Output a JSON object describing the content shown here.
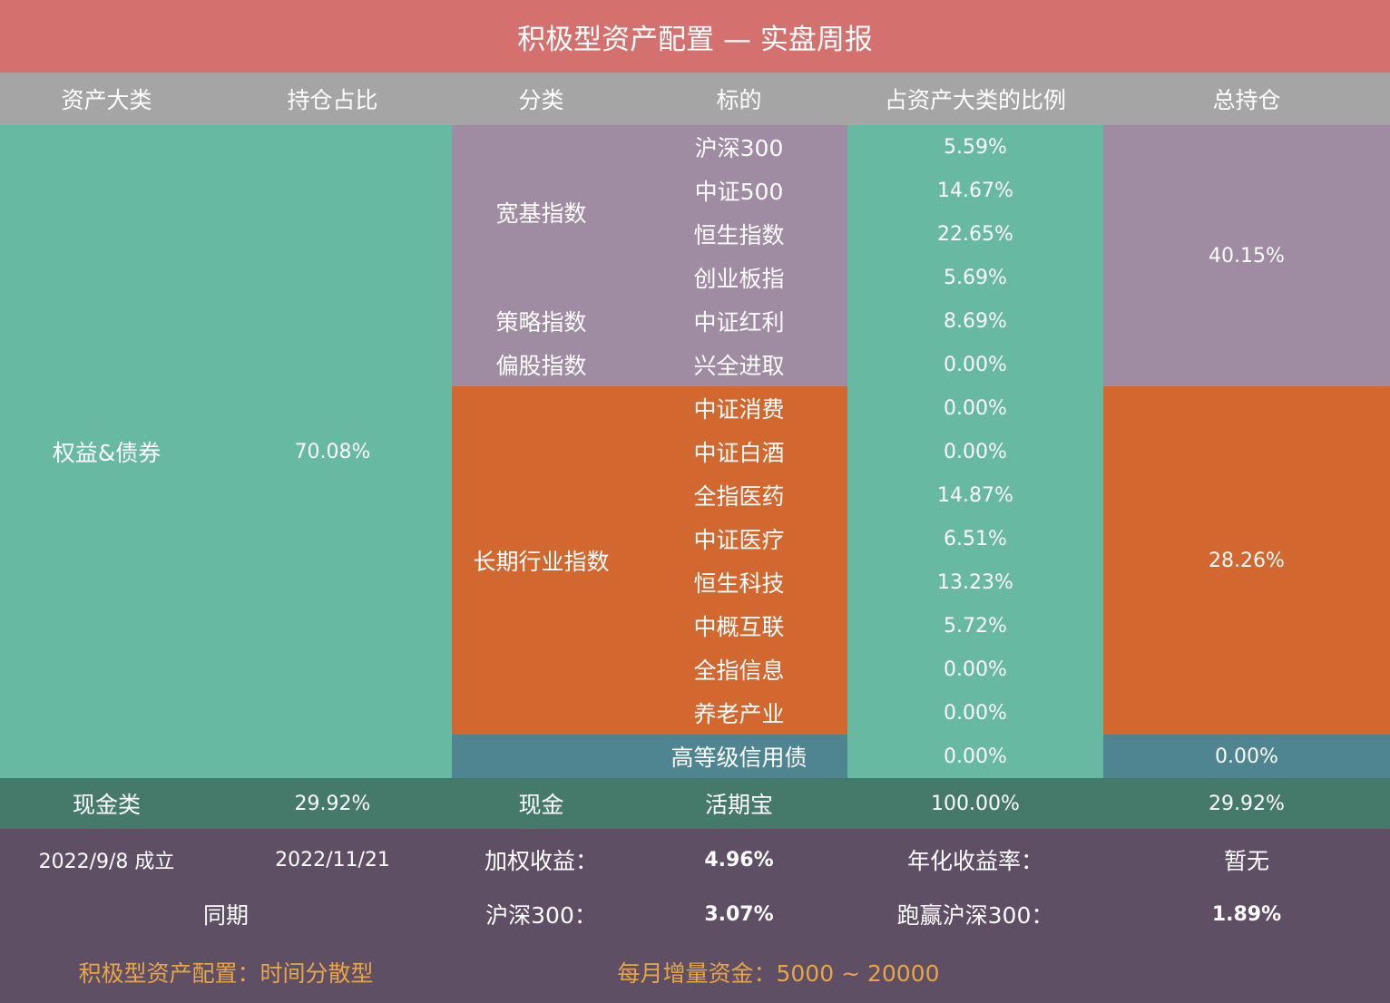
{
  "title": "积极型资产配置 — 实盘周报",
  "headers": [
    "资产大类",
    "持仓占比",
    "分类",
    "标的",
    "占资产大类的比例",
    "总持仓"
  ],
  "equity": {
    "name": "权益&债券",
    "share": "70.08%",
    "groups": {
      "broad": {
        "label": "宽基指数",
        "total": "40.15%"
      },
      "strategy": {
        "label": "策略指数"
      },
      "partial": {
        "label": "偏股指数"
      },
      "industry": {
        "label": "长期行业指数",
        "total": "28.26%"
      },
      "bond": {
        "total": "0.00%"
      }
    },
    "rows": [
      {
        "target": "沪深300",
        "ratio": "5.59%"
      },
      {
        "target": "中证500",
        "ratio": "14.67%"
      },
      {
        "target": "恒生指数",
        "ratio": "22.65%"
      },
      {
        "target": "创业板指",
        "ratio": "5.69%"
      },
      {
        "target": "中证红利",
        "ratio": "8.69%"
      },
      {
        "target": "兴全进取",
        "ratio": "0.00%"
      },
      {
        "target": "中证消费",
        "ratio": "0.00%"
      },
      {
        "target": "中证白酒",
        "ratio": "0.00%"
      },
      {
        "target": "全指医药",
        "ratio": "14.87%"
      },
      {
        "target": "中证医疗",
        "ratio": "6.51%"
      },
      {
        "target": "恒生科技",
        "ratio": "13.23%"
      },
      {
        "target": "中概互联",
        "ratio": "5.72%"
      },
      {
        "target": "全指信息",
        "ratio": "0.00%"
      },
      {
        "target": "养老产业",
        "ratio": "0.00%"
      },
      {
        "target": "高等级信用债",
        "ratio": "0.00%"
      }
    ]
  },
  "cash": {
    "name": "现金类",
    "share": "29.92%",
    "category": "现金",
    "target": "活期宝",
    "ratio": "100.00%",
    "total": "29.92%"
  },
  "summary": {
    "founded": "2022/9/8 成立",
    "date": "2022/11/21",
    "weighted_label": "加权收益：",
    "weighted_value": "4.96%",
    "annual_label": "年化收益率：",
    "annual_value": "暂无",
    "same_period": "同期",
    "hs300_label": "沪深300：",
    "hs300_value": "3.07%",
    "beat_label": "跑赢沪深300：",
    "beat_value": "1.89%",
    "strategy_note": "积极型资产配置：时间分散型",
    "monthly_note": "每月增量资金：5000 ~ 20000"
  },
  "colors": {
    "title_bg": "#d4716f",
    "header_bg": "#a5a5a5",
    "teal": "#67b9a2",
    "purple": "#9f8ba2",
    "orange": "#d2672f",
    "bluegray": "#4e8590",
    "cash_row": "#457a6b",
    "summary_bg": "#5e4f65",
    "gold_text": "#e8a448"
  }
}
